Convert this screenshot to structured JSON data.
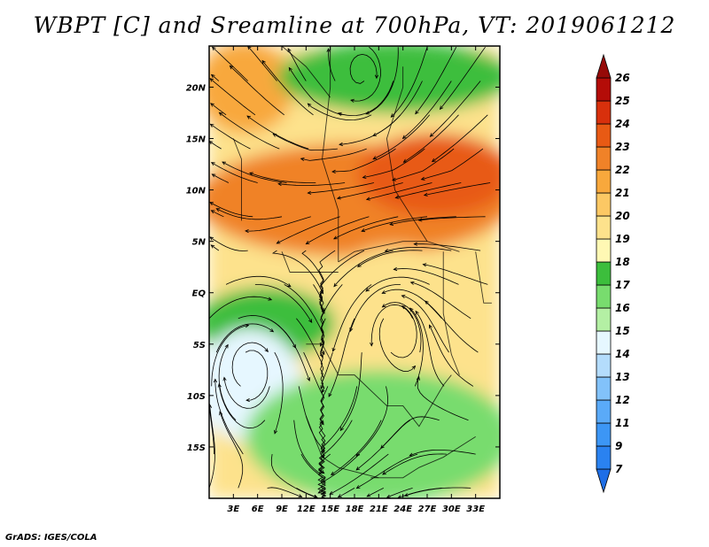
{
  "chart_data": {
    "type": "heatmap",
    "title": "WBPT [C] and Sreamline at 700hPa, VT: 2019061212",
    "variable": "Wet-bulb potential temperature",
    "units": "C",
    "level": "700hPa",
    "valid_time": "2019061212",
    "x_axis": {
      "label": "",
      "range": [
        0,
        36
      ],
      "ticks": [
        3,
        6,
        9,
        12,
        15,
        18,
        21,
        24,
        27,
        30,
        33
      ],
      "tick_labels": [
        "3E",
        "6E",
        "9E",
        "12E",
        "15E",
        "18E",
        "21E",
        "24E",
        "27E",
        "30E",
        "33E"
      ]
    },
    "y_axis": {
      "label": "",
      "range": [
        -20,
        24
      ],
      "ticks": [
        20,
        15,
        10,
        5,
        0,
        -5,
        -10,
        -15
      ],
      "tick_labels": [
        "20N",
        "15N",
        "10N",
        "5N",
        "EQ",
        "5S",
        "10S",
        "15S"
      ]
    },
    "colorbar": {
      "levels": [
        "7",
        "9",
        "11",
        "12",
        "13",
        "14",
        "15",
        "16",
        "17",
        "18",
        "19",
        "20",
        "21",
        "22",
        "23",
        "24",
        "25",
        "26"
      ],
      "colors": [
        "#1e6ee6",
        "#2a82f0",
        "#3c96f5",
        "#5aaaf8",
        "#82c2fa",
        "#b4dcfc",
        "#e6f7ff",
        "#b4f0a4",
        "#78dc6e",
        "#3cbe3c",
        "#fff8b4",
        "#fde28c",
        "#fcc864",
        "#f8a83c",
        "#f08228",
        "#e85a14",
        "#d8300c",
        "#b40c08",
        "#960a08"
      ]
    },
    "fields": {
      "wbpt_regions": [
        {
          "name": "north-west orange",
          "lon": [
            0,
            9
          ],
          "lat": [
            16,
            24
          ],
          "value": 21
        },
        {
          "name": "north green",
          "lon": [
            10,
            36
          ],
          "lat": [
            18,
            24
          ],
          "value": 17
        },
        {
          "name": "sahel orange band",
          "lon": [
            0,
            36
          ],
          "lat": [
            4,
            14
          ],
          "value": 22
        },
        {
          "name": "east highland red",
          "lon": [
            20,
            36
          ],
          "lat": [
            8,
            15
          ],
          "value": 23
        },
        {
          "name": "congo pale orange",
          "lon": [
            14,
            32
          ],
          "lat": [
            -10,
            4
          ],
          "value": 19
        },
        {
          "name": "gulf of guinea green",
          "lon": [
            0,
            14
          ],
          "lat": [
            -6,
            0
          ],
          "value": 17
        },
        {
          "name": "south-west light blue",
          "lon": [
            0,
            10
          ],
          "lat": [
            -14,
            -4
          ],
          "value": 14
        },
        {
          "name": "southern green",
          "lon": [
            6,
            36
          ],
          "lat": [
            -20,
            -8
          ],
          "value": 16
        }
      ],
      "streamline_features": [
        {
          "type": "anticyclonic circulation",
          "lon": 19,
          "lat": 21
        },
        {
          "type": "cyclonic circulation",
          "lon": 23,
          "lat": -3
        },
        {
          "type": "anticyclonic circulation",
          "lon": 5,
          "lat": -7
        }
      ]
    }
  },
  "footer": {
    "credit": "GrADS: IGES/COLA"
  }
}
